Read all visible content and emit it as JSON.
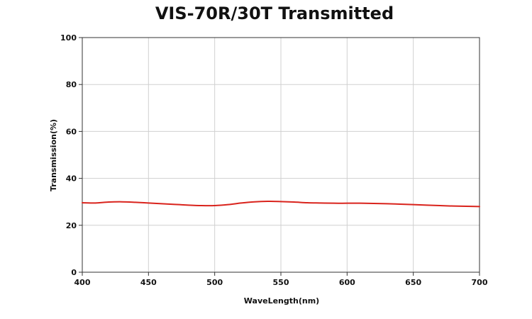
{
  "chart_data": {
    "type": "line",
    "title": "VIS-70R/30T Transmitted",
    "xlabel": "WaveLength(nm)",
    "ylabel": "Transmission(%)",
    "xlim": [
      400,
      700
    ],
    "ylim": [
      0,
      100
    ],
    "xticks": [
      400,
      450,
      500,
      550,
      600,
      650,
      700
    ],
    "yticks": [
      0,
      20,
      40,
      60,
      80,
      100
    ],
    "grid": true,
    "colors": {
      "line": "#d9231c",
      "grid": "#d0d0d0",
      "axis": "#333333"
    },
    "series": [
      {
        "x": [
          400,
          410,
          420,
          430,
          440,
          450,
          460,
          470,
          480,
          490,
          500,
          510,
          520,
          530,
          540,
          550,
          560,
          570,
          580,
          590,
          600,
          610,
          620,
          630,
          640,
          650,
          660,
          670,
          680,
          690,
          700
        ],
        "y": [
          29.6,
          29.5,
          29.9,
          30.0,
          29.8,
          29.5,
          29.2,
          28.9,
          28.6,
          28.4,
          28.4,
          28.8,
          29.5,
          30.0,
          30.2,
          30.1,
          29.9,
          29.6,
          29.5,
          29.4,
          29.4,
          29.4,
          29.3,
          29.2,
          29.0,
          28.8,
          28.6,
          28.4,
          28.2,
          28.1,
          28.0
        ]
      }
    ]
  }
}
